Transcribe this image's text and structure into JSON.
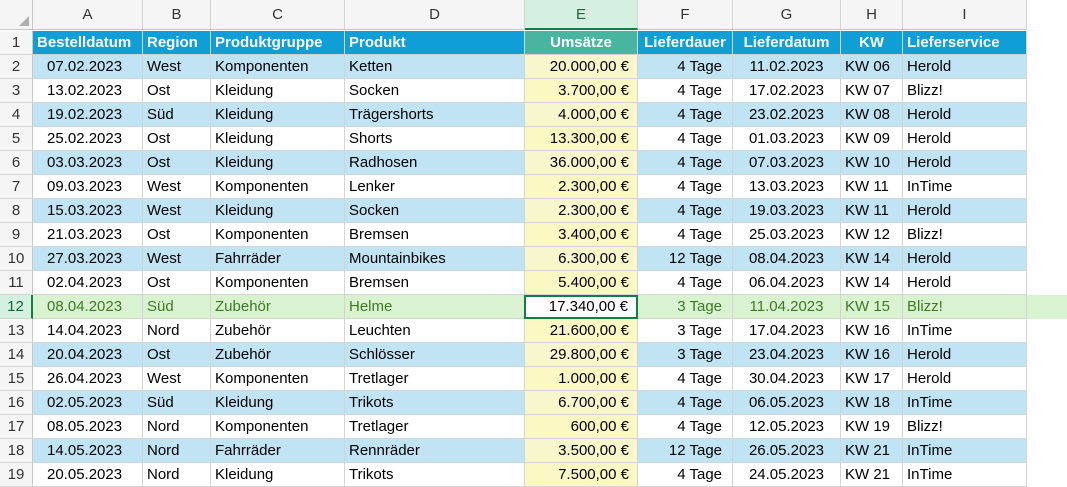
{
  "columns": [
    "A",
    "B",
    "C",
    "D",
    "E",
    "F",
    "G",
    "H",
    "I"
  ],
  "selected_column": "E",
  "selected_row": 12,
  "header_row": {
    "row_number": "1",
    "cells": [
      "Bestelldatum",
      "Region",
      "Produktgruppe",
      "Produkt",
      "Umsätze",
      "Lieferdauer",
      "Lieferdatum",
      "KW",
      "Lieferservice"
    ]
  },
  "rows": [
    {
      "n": "2",
      "cells": [
        "07.02.2023",
        "West",
        "Komponenten",
        "Ketten",
        "20.000,00 €",
        "4 Tage",
        "11.02.2023",
        "KW 06",
        "Herold"
      ]
    },
    {
      "n": "3",
      "cells": [
        "13.02.2023",
        "Ost",
        "Kleidung",
        "Socken",
        "3.700,00 €",
        "4 Tage",
        "17.02.2023",
        "KW 07",
        "Blizz!"
      ]
    },
    {
      "n": "4",
      "cells": [
        "19.02.2023",
        "Süd",
        "Kleidung",
        "Trägershorts",
        "4.000,00 €",
        "4 Tage",
        "23.02.2023",
        "KW 08",
        "Herold"
      ]
    },
    {
      "n": "5",
      "cells": [
        "25.02.2023",
        "Ost",
        "Kleidung",
        "Shorts",
        "13.300,00 €",
        "4 Tage",
        "01.03.2023",
        "KW 09",
        "Herold"
      ]
    },
    {
      "n": "6",
      "cells": [
        "03.03.2023",
        "Ost",
        "Kleidung",
        "Radhosen",
        "36.000,00 €",
        "4 Tage",
        "07.03.2023",
        "KW 10",
        "Herold"
      ]
    },
    {
      "n": "7",
      "cells": [
        "09.03.2023",
        "West",
        "Komponenten",
        "Lenker",
        "2.300,00 €",
        "4 Tage",
        "13.03.2023",
        "KW 11",
        "InTime"
      ]
    },
    {
      "n": "8",
      "cells": [
        "15.03.2023",
        "West",
        "Kleidung",
        "Socken",
        "2.300,00 €",
        "4 Tage",
        "19.03.2023",
        "KW 11",
        "Herold"
      ]
    },
    {
      "n": "9",
      "cells": [
        "21.03.2023",
        "Ost",
        "Komponenten",
        "Bremsen",
        "3.400,00 €",
        "4 Tage",
        "25.03.2023",
        "KW 12",
        "Blizz!"
      ]
    },
    {
      "n": "10",
      "cells": [
        "27.03.2023",
        "West",
        "Fahrräder",
        "Mountainbikes",
        "6.300,00 €",
        "12 Tage",
        "08.04.2023",
        "KW 14",
        "Herold"
      ]
    },
    {
      "n": "11",
      "cells": [
        "02.04.2023",
        "Ost",
        "Komponenten",
        "Bremsen",
        "5.400,00 €",
        "4 Tage",
        "06.04.2023",
        "KW 14",
        "Herold"
      ]
    },
    {
      "n": "12",
      "cells": [
        "08.04.2023",
        "Süd",
        "Zubehör",
        "Helme",
        "17.340,00 €",
        "3 Tage",
        "11.04.2023",
        "KW 15",
        "Blizz!"
      ]
    },
    {
      "n": "13",
      "cells": [
        "14.04.2023",
        "Nord",
        "Zubehör",
        "Leuchten",
        "21.600,00 €",
        "3 Tage",
        "17.04.2023",
        "KW 16",
        "InTime"
      ]
    },
    {
      "n": "14",
      "cells": [
        "20.04.2023",
        "Ost",
        "Zubehör",
        "Schlösser",
        "29.800,00 €",
        "3 Tage",
        "23.04.2023",
        "KW 16",
        "Herold"
      ]
    },
    {
      "n": "15",
      "cells": [
        "26.04.2023",
        "West",
        "Komponenten",
        "Tretlager",
        "1.000,00 €",
        "4 Tage",
        "30.04.2023",
        "KW 17",
        "Herold"
      ]
    },
    {
      "n": "16",
      "cells": [
        "02.05.2023",
        "Süd",
        "Kleidung",
        "Trikots",
        "6.700,00 €",
        "4 Tage",
        "06.05.2023",
        "KW 18",
        "InTime"
      ]
    },
    {
      "n": "17",
      "cells": [
        "08.05.2023",
        "Nord",
        "Komponenten",
        "Tretlager",
        "600,00 €",
        "4 Tage",
        "12.05.2023",
        "KW 19",
        "Blizz!"
      ]
    },
    {
      "n": "18",
      "cells": [
        "14.05.2023",
        "Nord",
        "Fahrräder",
        "Rennräder",
        "3.500,00 €",
        "12 Tage",
        "26.05.2023",
        "KW 21",
        "InTime"
      ]
    },
    {
      "n": "19",
      "cells": [
        "20.05.2023",
        "Nord",
        "Kleidung",
        "Trikots",
        "7.500,00 €",
        "4 Tage",
        "24.05.2023",
        "KW 21",
        "InTime"
      ]
    }
  ],
  "colors": {
    "header": "#0f9ed5",
    "header_umsatz": "#47b59f",
    "band": "#c1e4f5",
    "umsatz_fill": "#fbf8c4",
    "selection": "#137e43",
    "selected_row": "#d9f2d0"
  }
}
